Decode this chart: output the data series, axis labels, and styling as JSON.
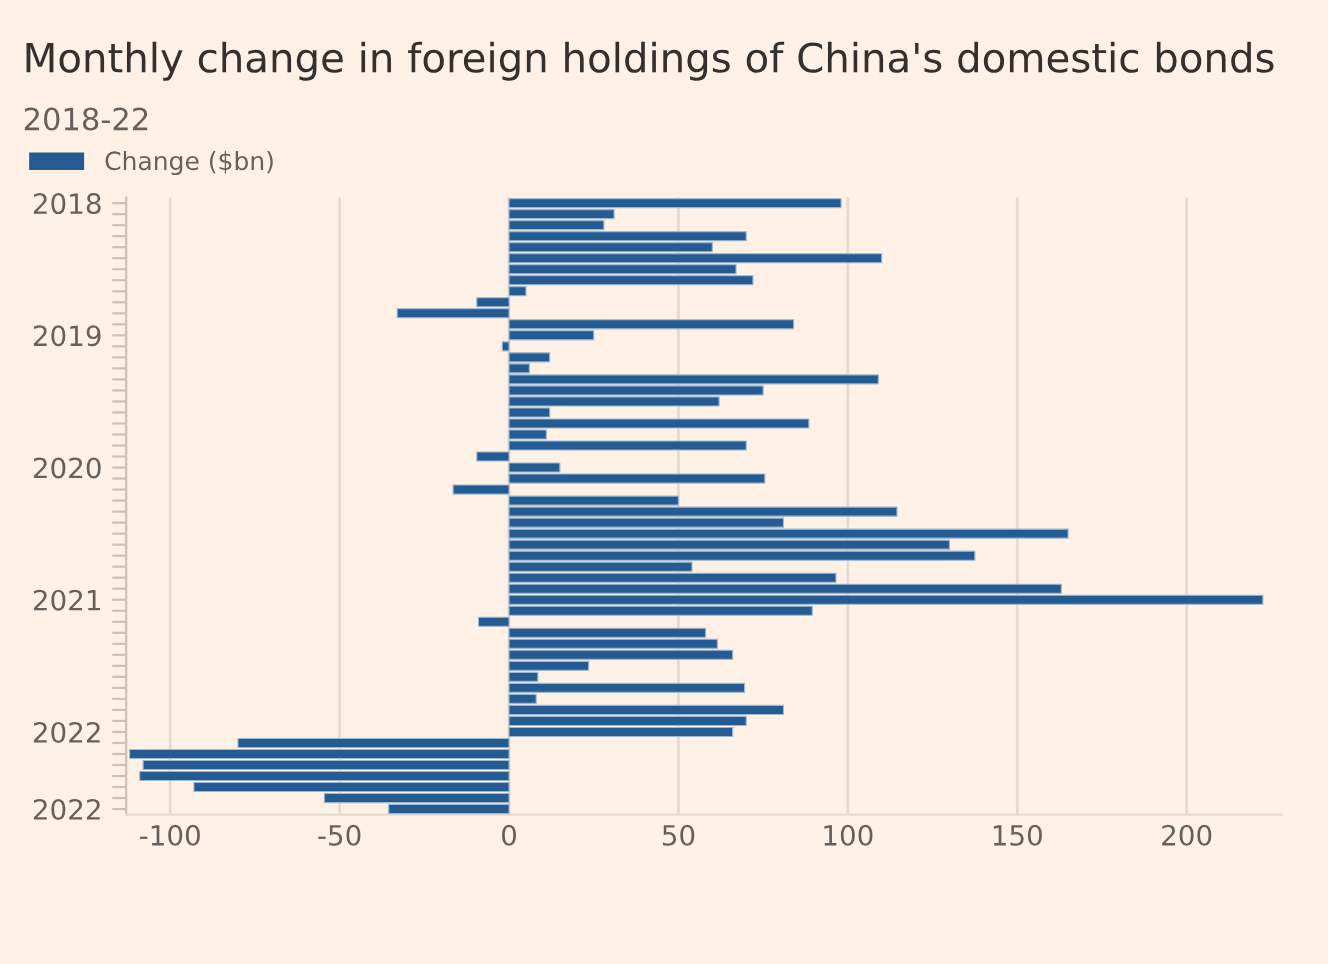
{
  "chart_data": {
    "type": "bar",
    "orientation": "horizontal",
    "title": "Monthly change in foreign holdings of China's domestic bonds",
    "subtitle": "2018-22",
    "categories": [
      "2018",
      null,
      null,
      null,
      null,
      null,
      null,
      null,
      null,
      null,
      null,
      null,
      "2019",
      null,
      null,
      null,
      null,
      null,
      null,
      null,
      null,
      null,
      null,
      null,
      "2020",
      null,
      null,
      null,
      null,
      null,
      null,
      null,
      null,
      null,
      null,
      null,
      "2021",
      null,
      null,
      null,
      null,
      null,
      null,
      null,
      null,
      null,
      null,
      null,
      "2022",
      null,
      null,
      null,
      null,
      null,
      null,
      "2022"
    ],
    "series": [
      {
        "name": "Change ($bn)",
        "color": "#245b93",
        "values": [
          98,
          31,
          28,
          70,
          60,
          110,
          67,
          72,
          5,
          -9.5,
          -33,
          84,
          25,
          -2,
          12,
          6,
          109,
          75,
          62,
          12,
          88.5,
          11,
          70,
          -9.5,
          15,
          75.5,
          -16.5,
          50,
          114.5,
          81,
          165,
          130,
          137.5,
          54,
          96.5,
          163,
          222.5,
          89.5,
          -9,
          58,
          61.5,
          66,
          23.5,
          8.5,
          69.5,
          8,
          81,
          70,
          66,
          -80,
          -112,
          -108,
          -109,
          -93,
          -54.5,
          -35.5
        ]
      }
    ],
    "xlim": [
      -113,
      228
    ],
    "xticks": [
      -100,
      -50,
      0,
      50,
      100,
      150,
      200
    ],
    "grid": "x",
    "legend": "top left"
  }
}
